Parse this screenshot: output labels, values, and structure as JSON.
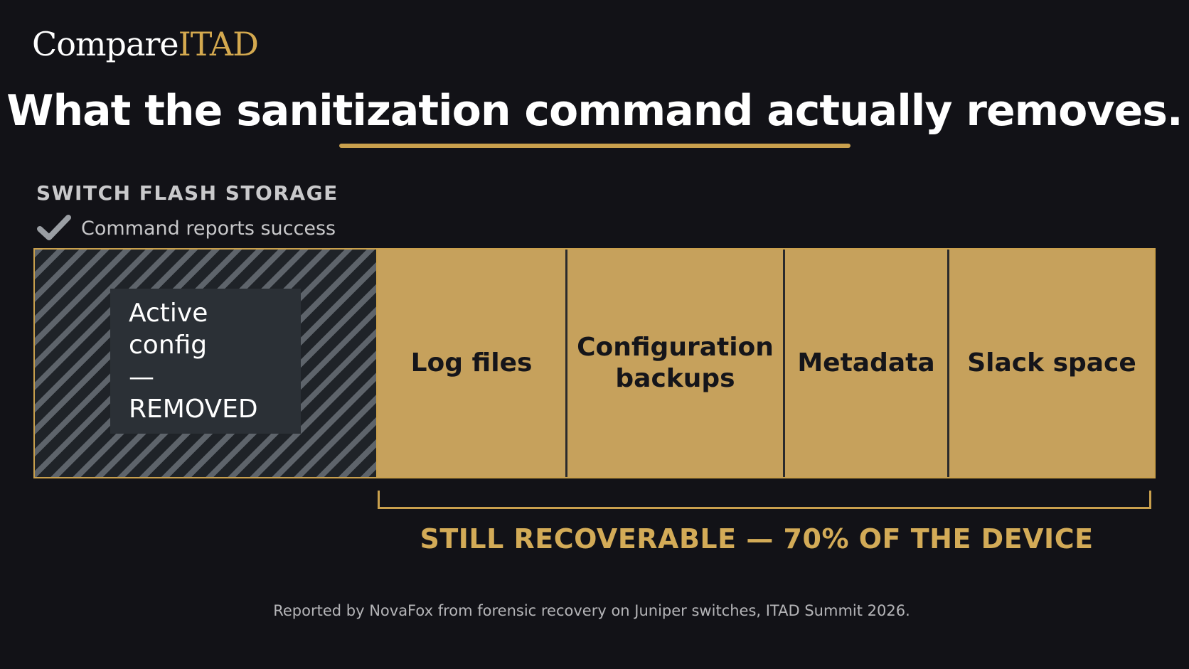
{
  "brand": {
    "part1": "Compare",
    "part2": "ITAD"
  },
  "headline": "What the sanitization command actually removes.",
  "section_label": "SWITCH FLASH STORAGE",
  "status": {
    "icon": "check-icon",
    "text": "Command reports success"
  },
  "storage": {
    "removed": {
      "line1": "Active config",
      "line2": "— REMOVED"
    },
    "segments": [
      {
        "line1": "Log files",
        "line2": ""
      },
      {
        "line1": "Configuration",
        "line2": "backups"
      },
      {
        "line1": "Metadata",
        "line2": ""
      },
      {
        "line1": "Slack space",
        "line2": ""
      }
    ],
    "recoverable_share": 0.7
  },
  "recoverable_label": "STILL RECOVERABLE — 70% OF THE DEVICE",
  "footnote": "Reported by NovaFox from forensic recovery on Juniper switches, ITAD Summit 2026.",
  "colors": {
    "background": "#121217",
    "accent_gold": "#c9a04d",
    "segment_fill": "#c6a15c",
    "removed_stripe": "#5e646b"
  }
}
